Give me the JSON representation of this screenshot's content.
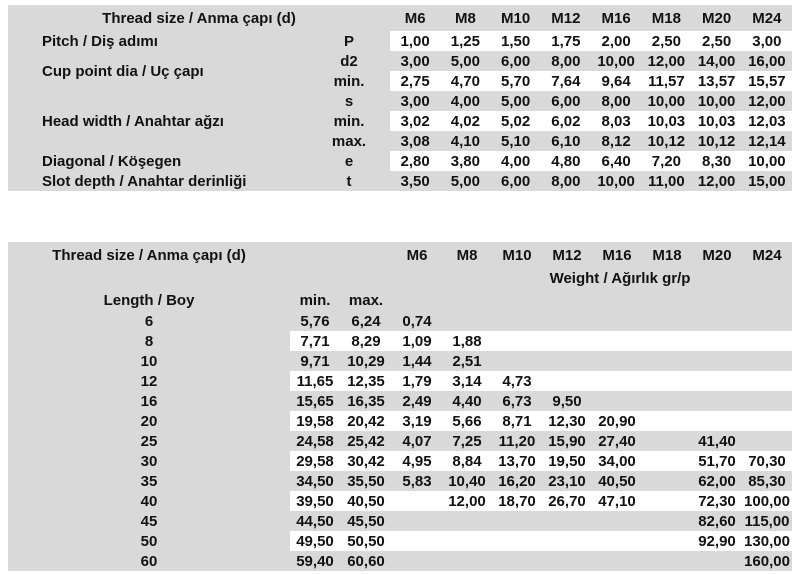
{
  "colors": {
    "table_bg": "#d9d9d9",
    "stripe_bg": "#ffffff",
    "text": "#121212"
  },
  "dimensions_table": {
    "title": "Thread size / Anma çapı (d)",
    "columns": [
      "M6",
      "M8",
      "M10",
      "M12",
      "M16",
      "M18",
      "M20",
      "M24"
    ],
    "rows": [
      {
        "label": "Pitch / Diş adımı",
        "label_rowspan": 1,
        "param": "P",
        "stripe": true,
        "values": [
          "1,00",
          "1,25",
          "1,50",
          "1,75",
          "2,00",
          "2,50",
          "2,50",
          "3,00"
        ]
      },
      {
        "label": "Cup point dia / Uç çapı",
        "label_rowspan": 2,
        "param": "d2",
        "stripe": false,
        "values": [
          "3,00",
          "5,00",
          "6,00",
          "8,00",
          "10,00",
          "12,00",
          "14,00",
          "16,00"
        ]
      },
      {
        "param": "min.",
        "stripe": true,
        "values": [
          "2,75",
          "4,70",
          "5,70",
          "7,64",
          "9,64",
          "11,57",
          "13,57",
          "15,57"
        ]
      },
      {
        "label": "Head width / Anahtar ağzı",
        "label_rowspan": 3,
        "param": "s",
        "stripe": false,
        "values": [
          "3,00",
          "4,00",
          "5,00",
          "6,00",
          "8,00",
          "10,00",
          "10,00",
          "12,00"
        ]
      },
      {
        "param": "min.",
        "stripe": true,
        "values": [
          "3,02",
          "4,02",
          "5,02",
          "6,02",
          "8,03",
          "10,03",
          "10,03",
          "12,03"
        ]
      },
      {
        "param": "max.",
        "stripe": false,
        "values": [
          "3,08",
          "4,10",
          "5,10",
          "6,10",
          "8,12",
          "10,12",
          "10,12",
          "12,14"
        ]
      },
      {
        "label": "Diagonal / Köşegen",
        "label_rowspan": 1,
        "param": "e",
        "stripe": true,
        "values": [
          "2,80",
          "3,80",
          "4,00",
          "4,80",
          "6,40",
          "7,20",
          "8,30",
          "10,00"
        ]
      },
      {
        "label": "Slot depth / Anahtar derinliği",
        "label_rowspan": 1,
        "param": "t",
        "stripe": false,
        "values": [
          "3,50",
          "5,00",
          "6,00",
          "8,00",
          "10,00",
          "11,00",
          "12,00",
          "15,00"
        ]
      }
    ]
  },
  "length_weight_table": {
    "title": "Thread size / Anma çapı (d)",
    "columns": [
      "M6",
      "M8",
      "M10",
      "M12",
      "M16",
      "M18",
      "M20",
      "M24"
    ],
    "weight_label": "Weight / Ağırlık gr/p",
    "length_label": "Length / Boy",
    "min_label": "min.",
    "max_label": "max.",
    "rows": [
      {
        "length": "6",
        "min": "5,76",
        "max": "6,24",
        "stripe": false,
        "weights": [
          "0,74",
          "",
          "",
          "",
          "",
          "",
          "",
          ""
        ]
      },
      {
        "length": "8",
        "min": "7,71",
        "max": "8,29",
        "stripe": true,
        "weights": [
          "1,09",
          "1,88",
          "",
          "",
          "",
          "",
          "",
          ""
        ]
      },
      {
        "length": "10",
        "min": "9,71",
        "max": "10,29",
        "stripe": false,
        "weights": [
          "1,44",
          "2,51",
          "",
          "",
          "",
          "",
          "",
          ""
        ]
      },
      {
        "length": "12",
        "min": "11,65",
        "max": "12,35",
        "stripe": true,
        "weights": [
          "1,79",
          "3,14",
          "4,73",
          "",
          "",
          "",
          "",
          ""
        ]
      },
      {
        "length": "16",
        "min": "15,65",
        "max": "16,35",
        "stripe": false,
        "weights": [
          "2,49",
          "4,40",
          "6,73",
          "9,50",
          "",
          "",
          "",
          ""
        ]
      },
      {
        "length": "20",
        "min": "19,58",
        "max": "20,42",
        "stripe": true,
        "weights": [
          "3,19",
          "5,66",
          "8,71",
          "12,30",
          "20,90",
          "",
          "",
          ""
        ]
      },
      {
        "length": "25",
        "min": "24,58",
        "max": "25,42",
        "stripe": false,
        "weights": [
          "4,07",
          "7,25",
          "11,20",
          "15,90",
          "27,40",
          "",
          "41,40",
          ""
        ]
      },
      {
        "length": "30",
        "min": "29,58",
        "max": "30,42",
        "stripe": true,
        "weights": [
          "4,95",
          "8,84",
          "13,70",
          "19,50",
          "34,00",
          "",
          "51,70",
          "70,30"
        ]
      },
      {
        "length": "35",
        "min": "34,50",
        "max": "35,50",
        "stripe": false,
        "weights": [
          "5,83",
          "10,40",
          "16,20",
          "23,10",
          "40,50",
          "",
          "62,00",
          "85,30"
        ]
      },
      {
        "length": "40",
        "min": "39,50",
        "max": "40,50",
        "stripe": true,
        "weights": [
          "",
          "12,00",
          "18,70",
          "26,70",
          "47,10",
          "",
          "72,30",
          "100,00"
        ]
      },
      {
        "length": "45",
        "min": "44,50",
        "max": "45,50",
        "stripe": false,
        "weights": [
          "",
          "",
          "",
          "",
          "",
          "",
          "82,60",
          "115,00"
        ]
      },
      {
        "length": "50",
        "min": "49,50",
        "max": "50,50",
        "stripe": true,
        "weights": [
          "",
          "",
          "",
          "",
          "",
          "",
          "92,90",
          "130,00"
        ]
      },
      {
        "length": "60",
        "min": "59,40",
        "max": "60,60",
        "stripe": false,
        "weights": [
          "",
          "",
          "",
          "",
          "",
          "",
          "",
          "160,00"
        ]
      }
    ]
  }
}
